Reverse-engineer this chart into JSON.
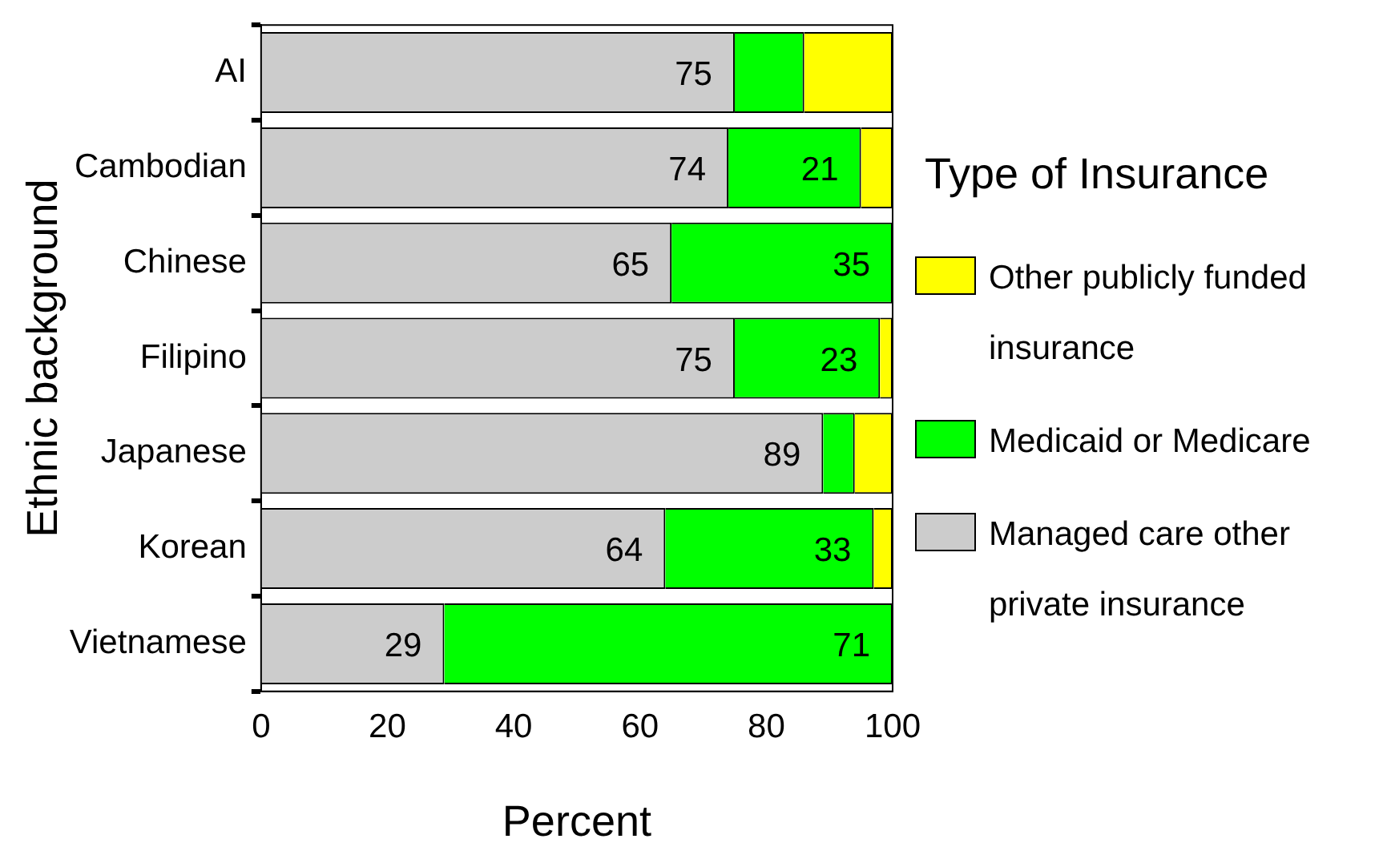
{
  "chart_data": {
    "type": "bar",
    "orientation": "horizontal",
    "stacked": true,
    "xlabel": "Percent",
    "ylabel": "Ethnic background",
    "legend_title": "Type of Insurance",
    "legend": "right",
    "grid": false,
    "categories": [
      "AI",
      "Cambodian",
      "Chinese",
      "Filipino",
      "Japanese",
      "Korean",
      "Vietnamese"
    ],
    "xlim": [
      0,
      100
    ],
    "xticks": [
      0,
      20,
      40,
      60,
      80,
      100
    ],
    "series": [
      {
        "name": "Managed care other private insurance",
        "color": "#cccccc",
        "values": [
          75,
          74,
          65,
          75,
          89,
          64,
          29
        ],
        "value_labels": [
          "75",
          "74",
          "65",
          "75",
          "89",
          "64",
          "29"
        ]
      },
      {
        "name": "Medicaid or Medicare",
        "color": "#00ff00",
        "values": [
          11,
          21,
          35,
          23,
          5,
          33,
          71
        ],
        "value_labels": [
          null,
          "21",
          "35",
          "23",
          null,
          "33",
          "71"
        ]
      },
      {
        "name": "Other publicly funded insurance",
        "color": "#ffff00",
        "values": [
          14,
          5,
          0,
          2,
          6,
          3,
          0
        ],
        "value_labels": [
          null,
          null,
          null,
          null,
          null,
          null,
          null
        ]
      }
    ]
  }
}
